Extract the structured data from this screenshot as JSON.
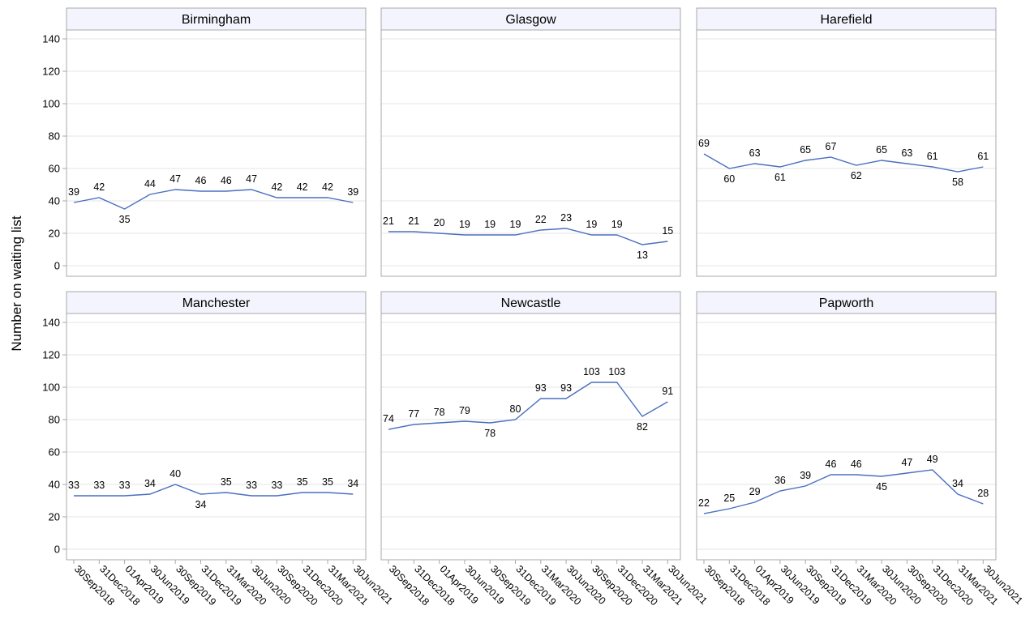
{
  "colors": {
    "line": "#4a6fc0",
    "grid": "#e6e6e6",
    "frame": "#a9a9a9",
    "header_fill": "#f3f4fd",
    "text": "#000000"
  },
  "chart_data": {
    "type": "line",
    "ylabel": "Number on waiting list",
    "xlabel": "",
    "ylim": [
      0,
      140
    ],
    "y_ticks": [
      0,
      20,
      40,
      60,
      80,
      100,
      120,
      140
    ],
    "grid": true,
    "categories": [
      "30Sep2018",
      "31Dec2018",
      "01Apr2019",
      "30Jun2019",
      "30Sep2019",
      "31Dec2019",
      "31Mar2020",
      "30Jun2020",
      "30Sep2020",
      "31Dec2020",
      "31Mar2021",
      "30Jun2021"
    ],
    "panels": [
      {
        "name": "Birmingham",
        "values": [
          39,
          42,
          35,
          44,
          47,
          46,
          46,
          47,
          42,
          42,
          42,
          39
        ]
      },
      {
        "name": "Glasgow",
        "values": [
          21,
          21,
          20,
          19,
          19,
          19,
          22,
          23,
          19,
          19,
          13,
          15
        ]
      },
      {
        "name": "Harefield",
        "values": [
          69,
          60,
          63,
          61,
          65,
          67,
          62,
          65,
          63,
          61,
          58,
          61
        ]
      },
      {
        "name": "Manchester",
        "values": [
          33,
          33,
          33,
          34,
          40,
          34,
          35,
          33,
          33,
          35,
          35,
          34
        ]
      },
      {
        "name": "Newcastle",
        "values": [
          74,
          77,
          78,
          79,
          78,
          80,
          93,
          93,
          103,
          103,
          82,
          91
        ]
      },
      {
        "name": "Papworth",
        "values": [
          22,
          25,
          29,
          36,
          39,
          46,
          46,
          45,
          47,
          49,
          34,
          28
        ]
      }
    ]
  }
}
